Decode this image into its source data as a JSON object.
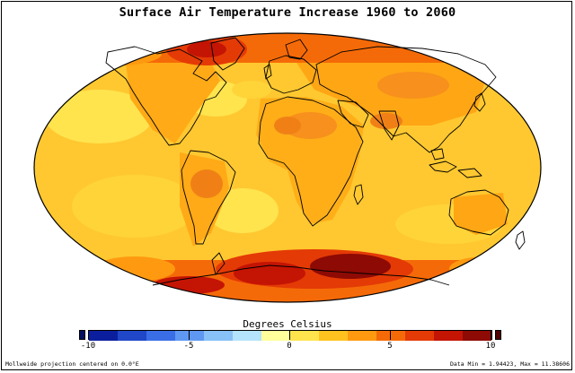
{
  "title": "Surface Air Temperature Increase 1960 to 2060",
  "colorbar": {
    "title": "Degrees Celsius",
    "ticks": [
      "-10",
      "-5",
      "0",
      "5",
      "10"
    ],
    "tick_values": [
      -10,
      -5,
      0,
      5,
      10
    ],
    "range": [
      -10,
      10
    ],
    "colors": [
      "#0b1f9e",
      "#1f47c8",
      "#3a6ee6",
      "#5f98f2",
      "#88c0f8",
      "#b4e3fc",
      "#ffff9c",
      "#ffe44e",
      "#ffc21e",
      "#ff9a10",
      "#f56a08",
      "#e43a06",
      "#c41404",
      "#8e0a04"
    ],
    "under_color": "#061060",
    "over_color": "#500000"
  },
  "footer": {
    "projection": "Mollweide projection centered on 0.0°E",
    "data_range": "Data Min = 1.94423, Max = 11.38606"
  },
  "map": {
    "projection": "mollweide",
    "center_longitude": 0.0,
    "data_min": 1.94423,
    "data_max": 11.38606,
    "base_color": "#ffb21a",
    "ocean_color": "#ffc830",
    "land_warm_color": "#ff9a10",
    "hot_color": "#e43a06",
    "extreme_color": "#8e0a04"
  }
}
